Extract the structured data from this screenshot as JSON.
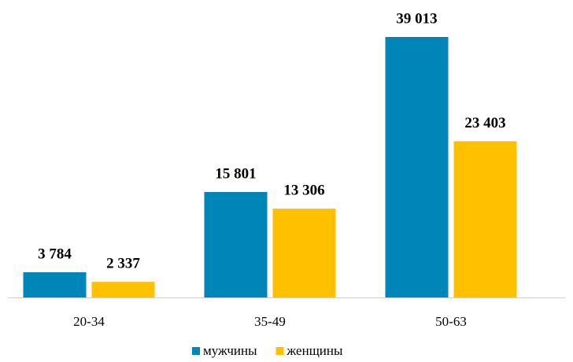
{
  "chart_data": {
    "type": "bar",
    "categories": [
      "20-34",
      "35-49",
      "50-63"
    ],
    "series": [
      {
        "name": "мужчины",
        "color": "#0085b8",
        "values": [
          3784,
          15801,
          39013
        ],
        "value_labels": [
          "3 784",
          "15 801",
          "39 013"
        ]
      },
      {
        "name": "женщины",
        "color": "#ffc000",
        "values": [
          2337,
          13306,
          23403
        ],
        "value_labels": [
          "2 337",
          "13 306",
          "23 403"
        ]
      }
    ]
  }
}
